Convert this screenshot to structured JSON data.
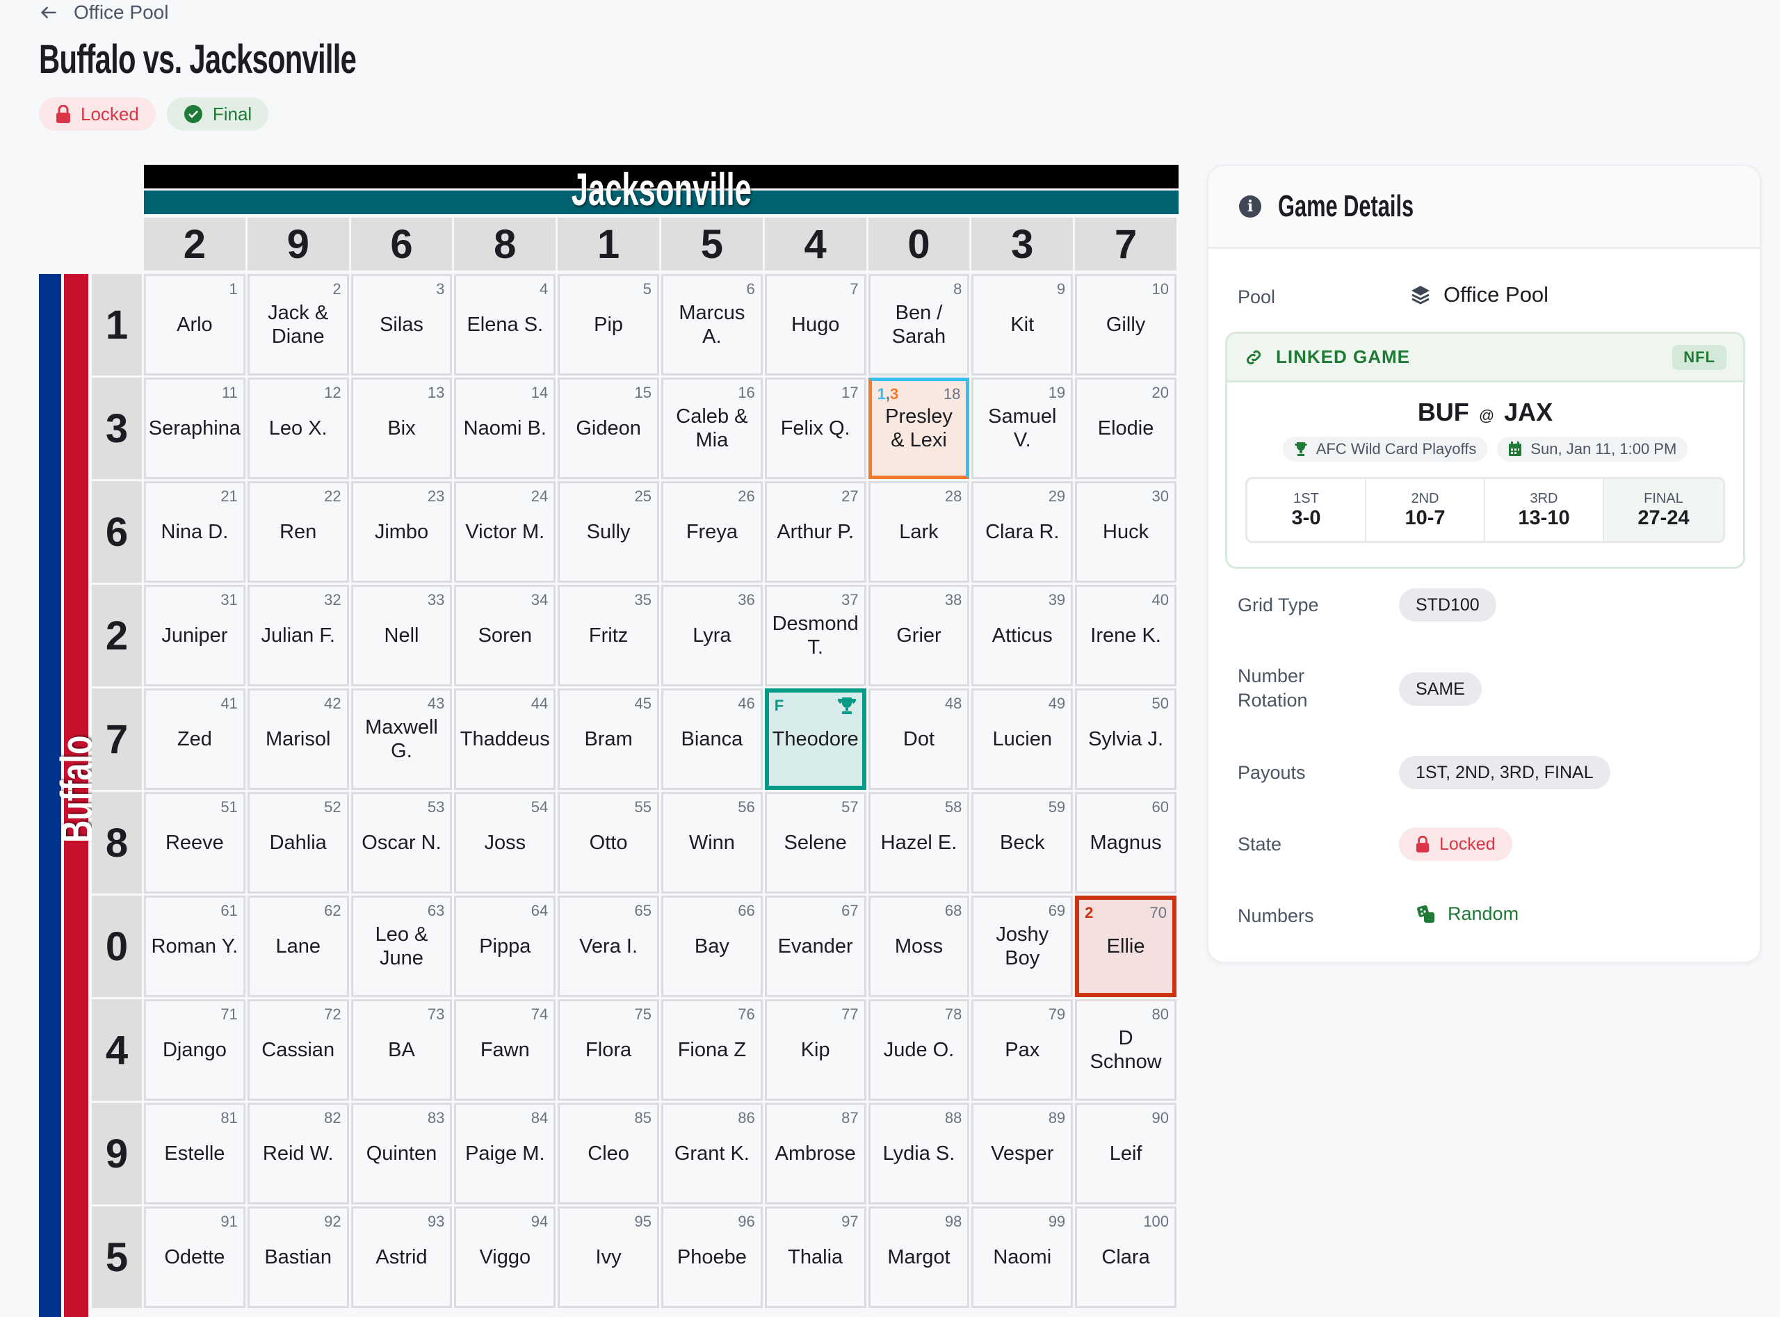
{
  "nav": {
    "back_label": "Office Pool"
  },
  "title": "Buffalo vs. Jacksonville",
  "badges": {
    "locked": "Locked",
    "final": "Final"
  },
  "colors": {
    "buffalo_blue": "#00338d",
    "buffalo_red": "#c8102e",
    "jax_teal": "#006170",
    "jax_black": "#000000",
    "winner_final": "#059b86",
    "winner_q1": "#38bdf0",
    "winner_q3": "#f07a30",
    "winner_q2": "#cc3311"
  },
  "grid": {
    "top_team": "Jacksonville",
    "side_team": "Buffalo",
    "col_numbers": [
      "2",
      "9",
      "6",
      "8",
      "1",
      "5",
      "4",
      "0",
      "3",
      "7"
    ],
    "row_numbers": [
      "1",
      "3",
      "6",
      "2",
      "7",
      "8",
      "0",
      "4",
      "9",
      "5"
    ],
    "rows": [
      [
        "Arlo",
        "Jack & Diane",
        "Silas",
        "Elena S.",
        "Pip",
        "Marcus A.",
        "Hugo",
        "Ben / Sarah",
        "Kit",
        "Gilly"
      ],
      [
        "Seraphina",
        "Leo X.",
        "Bix",
        "Naomi B.",
        "Gideon",
        "Caleb & Mia",
        "Felix Q.",
        "Presley & Lexi",
        "Samuel V.",
        "Elodie"
      ],
      [
        "Nina D.",
        "Ren",
        "Jimbo",
        "Victor M.",
        "Sully",
        "Freya",
        "Arthur P.",
        "Lark",
        "Clara R.",
        "Huck"
      ],
      [
        "Juniper",
        "Julian F.",
        "Nell",
        "Soren",
        "Fritz",
        "Lyra",
        "Desmond T.",
        "Grier",
        "Atticus",
        "Irene K."
      ],
      [
        "Zed",
        "Marisol",
        "Maxwell G.",
        "Thaddeus",
        "Bram",
        "Bianca",
        "Theodore",
        "Dot",
        "Lucien",
        "Sylvia J."
      ],
      [
        "Reeve",
        "Dahlia",
        "Oscar N.",
        "Joss",
        "Otto",
        "Winn",
        "Selene",
        "Hazel E.",
        "Beck",
        "Magnus"
      ],
      [
        "Roman Y.",
        "Lane",
        "Leo & June",
        "Pippa",
        "Vera I.",
        "Bay",
        "Evander",
        "Moss",
        "Joshy Boy",
        "Ellie"
      ],
      [
        "Django",
        "Cassian",
        "BA",
        "Fawn",
        "Flora",
        "Fiona Z",
        "Kip",
        "Jude O.",
        "Pax",
        "D Schnow"
      ],
      [
        "Estelle",
        "Reid W.",
        "Quinten",
        "Paige M.",
        "Cleo",
        "Grant K.",
        "Ambrose",
        "Lydia S.",
        "Vesper",
        "Leif"
      ],
      [
        "Odette",
        "Bastian",
        "Astrid",
        "Viggo",
        "Ivy",
        "Phoebe",
        "Thalia",
        "Margot",
        "Naomi",
        "Clara"
      ]
    ],
    "square_numbers": [
      [
        "1",
        "2",
        "3",
        "4",
        "5",
        "6",
        "7",
        "8",
        "9",
        "10"
      ],
      [
        "11",
        "12",
        "13",
        "14",
        "15",
        "16",
        "17",
        "18",
        "19",
        "20"
      ],
      [
        "21",
        "22",
        "23",
        "24",
        "25",
        "26",
        "27",
        "28",
        "29",
        "30"
      ],
      [
        "31",
        "32",
        "33",
        "34",
        "35",
        "36",
        "37",
        "38",
        "39",
        "40"
      ],
      [
        "41",
        "42",
        "43",
        "44",
        "45",
        "46",
        "47",
        "48",
        "49",
        "50"
      ],
      [
        "51",
        "52",
        "53",
        "54",
        "55",
        "56",
        "57",
        "58",
        "59",
        "60"
      ],
      [
        "61",
        "62",
        "63",
        "64",
        "65",
        "66",
        "67",
        "68",
        "69",
        "70"
      ],
      [
        "71",
        "72",
        "73",
        "74",
        "75",
        "76",
        "77",
        "78",
        "79",
        "80"
      ],
      [
        "81",
        "82",
        "83",
        "84",
        "85",
        "86",
        "87",
        "88",
        "89",
        "90"
      ],
      [
        "91",
        "92",
        "93",
        "94",
        "95",
        "96",
        "97",
        "98",
        "99",
        "100"
      ]
    ],
    "winners": [
      {
        "square": "18",
        "markers": [
          {
            "text": "1",
            "color": "#38bdf0"
          },
          {
            "text": ",",
            "color": "#6b7280"
          },
          {
            "text": "3",
            "color": "#f07a30"
          }
        ]
      },
      {
        "square": "47",
        "markers": [
          {
            "text": "F",
            "color": "#059b86"
          }
        ],
        "icon": "trophy-icon"
      },
      {
        "square": "70",
        "markers": [
          {
            "text": "2",
            "color": "#cc3311"
          }
        ]
      }
    ]
  },
  "panel": {
    "title": "Game Details",
    "pool_label": "Pool",
    "pool_value": "Office Pool",
    "linked": {
      "header": "LINKED GAME",
      "league": "NFL",
      "away": "BUF",
      "at": "@",
      "home": "JAX",
      "round": "AFC Wild Card Playoffs",
      "datetime": "Sun, Jan 11, 1:00 PM",
      "scores": [
        {
          "label": "1ST",
          "score": "3-0"
        },
        {
          "label": "2ND",
          "score": "10-7"
        },
        {
          "label": "3RD",
          "score": "13-10"
        },
        {
          "label": "FINAL",
          "score": "27-24"
        }
      ]
    },
    "grid_type_label": "Grid Type",
    "grid_type": "STD100",
    "rotation_label": "Number Rotation",
    "rotation": "SAME",
    "payouts_label": "Payouts",
    "payouts": "1ST, 2ND, 3RD, FINAL",
    "state_label": "State",
    "state": "Locked",
    "numbers_label": "Numbers",
    "numbers": "Random"
  }
}
